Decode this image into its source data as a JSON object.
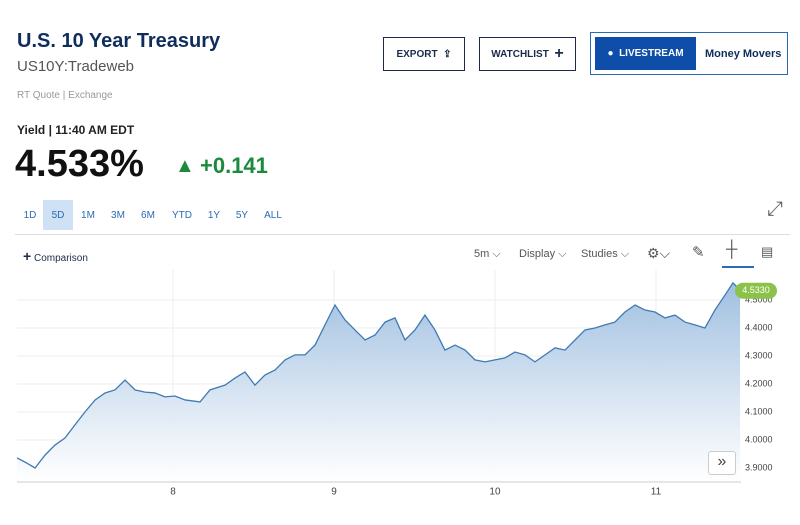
{
  "header": {
    "title": "U.S. 10 Year Treasury",
    "symbol": "US10Y:Tradeweb",
    "source": "RT Quote | Exchange"
  },
  "buttons": {
    "export": "EXPORT",
    "watchlist": "WATCHLIST",
    "livestream": "LIVESTREAM",
    "show": "Money Movers"
  },
  "quote": {
    "label": "Yield | 11:40 AM EDT",
    "last": "4.533%",
    "change": "+0.141"
  },
  "ranges": [
    "1D",
    "5D",
    "1M",
    "3M",
    "6M",
    "YTD",
    "1Y",
    "5Y",
    "ALL"
  ],
  "selected_range": "5D",
  "toolbar": {
    "comparison": "Comparison",
    "interval": "5m",
    "display": "Display",
    "studies": "Studies"
  },
  "chart_data": {
    "type": "area",
    "grid": true,
    "x": [
      7.031,
      7.081,
      7.143,
      7.205,
      7.267,
      7.329,
      7.391,
      7.453,
      7.516,
      7.578,
      7.64,
      7.702,
      7.764,
      7.826,
      7.888,
      7.95,
      8.012,
      8.075,
      8.168,
      8.23,
      8.323,
      8.385,
      8.447,
      8.509,
      8.571,
      8.634,
      8.696,
      8.758,
      8.82,
      8.882,
      8.944,
      9.006,
      9.068,
      9.13,
      9.193,
      9.255,
      9.317,
      9.379,
      9.441,
      9.503,
      9.565,
      9.627,
      9.689,
      9.752,
      9.814,
      9.876,
      9.938,
      10.0,
      10.062,
      10.124,
      10.186,
      10.248,
      10.311,
      10.373,
      10.435,
      10.497,
      10.559,
      10.621,
      10.683,
      10.745,
      10.807,
      10.87,
      10.932,
      10.994,
      11.056,
      11.118,
      11.18,
      11.242,
      11.304,
      11.366,
      11.429,
      11.478,
      11.522
    ],
    "series": [
      {
        "color": "#3f7ab3",
        "values": [
          3.936,
          3.921,
          3.9,
          3.946,
          3.982,
          4.007,
          4.054,
          4.1,
          4.143,
          4.168,
          4.179,
          4.214,
          4.179,
          4.171,
          4.168,
          4.154,
          4.157,
          4.143,
          4.136,
          4.179,
          4.196,
          4.221,
          4.243,
          4.196,
          4.232,
          4.25,
          4.286,
          4.304,
          4.304,
          4.339,
          4.411,
          4.482,
          4.429,
          4.393,
          4.357,
          4.375,
          4.421,
          4.436,
          4.357,
          4.393,
          4.446,
          4.393,
          4.321,
          4.339,
          4.321,
          4.286,
          4.279,
          4.286,
          4.293,
          4.314,
          4.304,
          4.279,
          4.304,
          4.329,
          4.321,
          4.357,
          4.393,
          4.4,
          4.411,
          4.421,
          4.457,
          4.482,
          4.464,
          4.457,
          4.436,
          4.446,
          4.421,
          4.411,
          4.4,
          4.464,
          4.518,
          4.561,
          4.536
        ]
      }
    ],
    "last_price": {
      "value": 4.533,
      "label": "4.5330"
    },
    "xlim": [
      7.031,
      11.528
    ],
    "xticks": [
      8,
      9,
      10,
      11
    ],
    "ylim": [
      3.85,
      4.607
    ],
    "yticks": [
      {
        "value": 3.9,
        "label": "3.9000"
      },
      {
        "value": 4.0,
        "label": "4.0000"
      },
      {
        "value": 4.1,
        "label": "4.1000"
      },
      {
        "value": 4.2,
        "label": "4.2000"
      },
      {
        "value": 4.3,
        "label": "4.3000"
      },
      {
        "value": 4.4,
        "label": "4.4000"
      },
      {
        "value": 4.5,
        "label": "4.5000"
      }
    ]
  }
}
